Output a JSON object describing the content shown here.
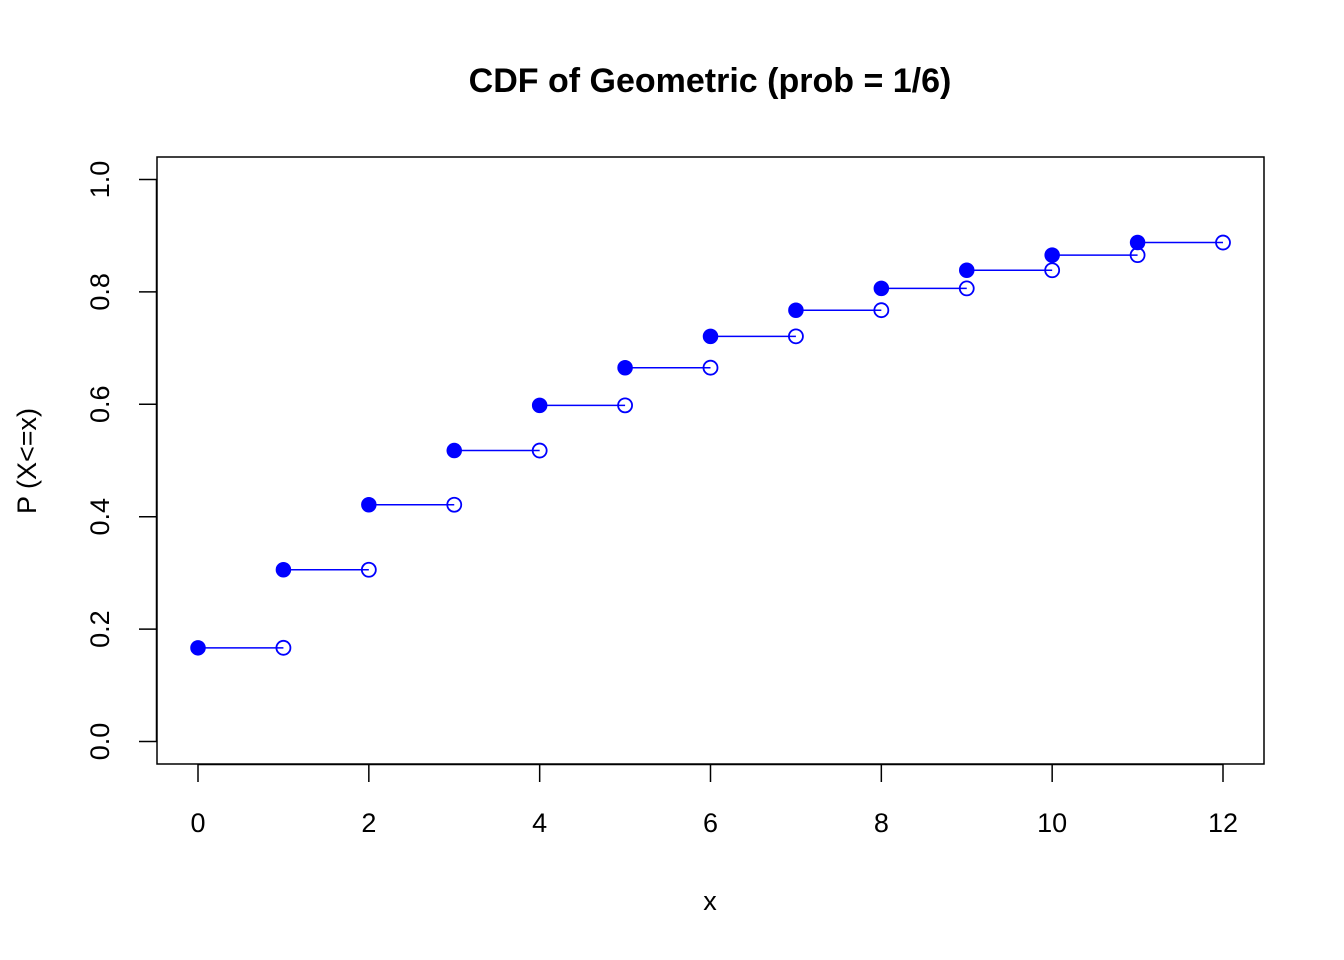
{
  "chart_data": {
    "type": "scatter",
    "title": "CDF of Geometric (prob = 1/6)",
    "xlabel": "x",
    "ylabel": "P (X<=x)",
    "xlim": [
      -0.48,
      12.48
    ],
    "ylim": [
      -0.04,
      1.04
    ],
    "x_ticks": [
      0,
      2,
      4,
      6,
      8,
      10,
      12
    ],
    "x_tick_labels": [
      "0",
      "2",
      "4",
      "6",
      "8",
      "10",
      "12"
    ],
    "y_ticks": [
      0.0,
      0.2,
      0.4,
      0.6,
      0.8,
      1.0
    ],
    "y_tick_labels": [
      "0.0",
      "0.2",
      "0.4",
      "0.6",
      "0.8",
      "1.0"
    ],
    "grid": false,
    "color": "#0000ff",
    "steps": [
      {
        "x_start": 0,
        "x_end": 1,
        "p": 0.1667
      },
      {
        "x_start": 1,
        "x_end": 2,
        "p": 0.3056
      },
      {
        "x_start": 2,
        "x_end": 3,
        "p": 0.4213
      },
      {
        "x_start": 3,
        "x_end": 4,
        "p": 0.5177
      },
      {
        "x_start": 4,
        "x_end": 5,
        "p": 0.5981
      },
      {
        "x_start": 5,
        "x_end": 6,
        "p": 0.6651
      },
      {
        "x_start": 6,
        "x_end": 7,
        "p": 0.7209
      },
      {
        "x_start": 7,
        "x_end": 8,
        "p": 0.7674
      },
      {
        "x_start": 8,
        "x_end": 9,
        "p": 0.8062
      },
      {
        "x_start": 9,
        "x_end": 10,
        "p": 0.8385
      },
      {
        "x_start": 10,
        "x_end": 11,
        "p": 0.8654
      },
      {
        "x_start": 11,
        "x_end": 12,
        "p": 0.8878
      }
    ]
  }
}
